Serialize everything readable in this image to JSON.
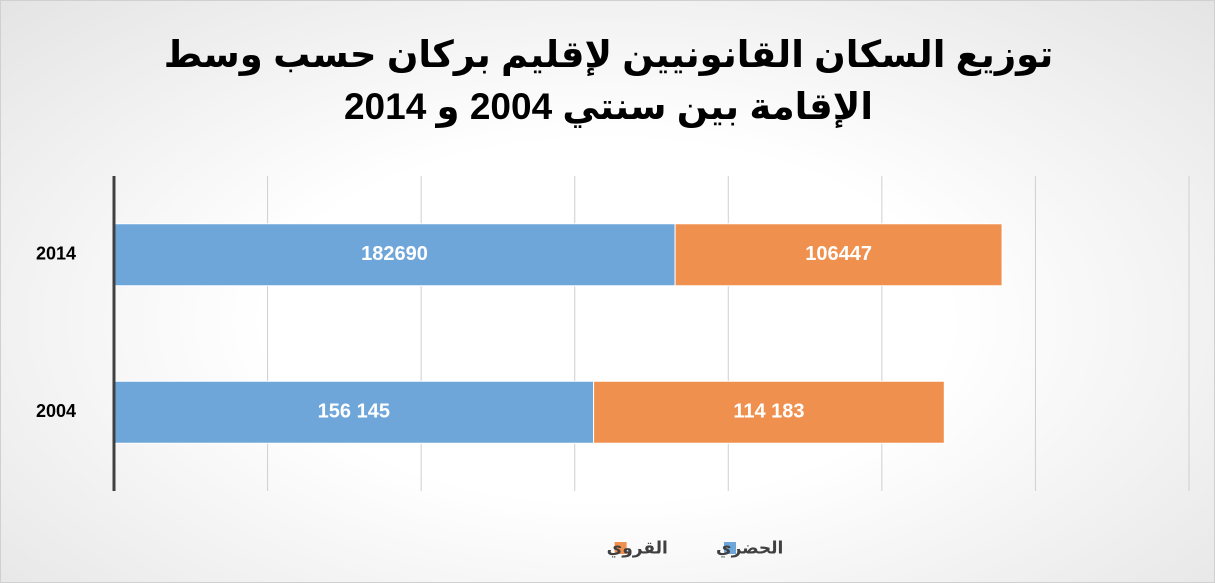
{
  "chart_data": {
    "type": "stacked-barh",
    "title": "توزيع السكان القانونيين لإقليم بركان حسب وسط الإقامة بين سنتي 2004 و 2014",
    "categories": [
      "2014",
      "2004"
    ],
    "series": [
      {
        "name": "الحضري",
        "color": "#6fa6da",
        "values": [
          182690,
          156145
        ],
        "value_labels": [
          "182690",
          "156 145"
        ]
      },
      {
        "name": "القروي",
        "color": "#f0904f",
        "values": [
          106447,
          114183
        ],
        "value_labels": [
          "106447",
          "114 183"
        ]
      }
    ],
    "xlim": [
      0,
      350000
    ],
    "xticks": [
      0,
      50000,
      100000,
      150000,
      200000,
      250000,
      300000,
      350000
    ],
    "grid": true,
    "legend": "bottom"
  }
}
